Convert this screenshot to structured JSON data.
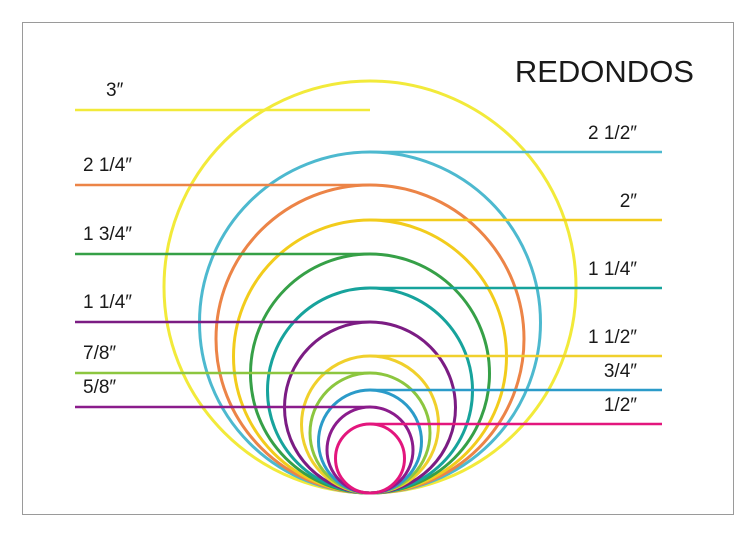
{
  "title": "REDONDOS",
  "circles": [
    {
      "label": "3″",
      "side": "left",
      "color": "#f2ea3a"
    },
    {
      "label": "2 1/2″",
      "side": "right",
      "color": "#4db9cf"
    },
    {
      "label": "2 1/4″",
      "side": "left",
      "color": "#ec8447"
    },
    {
      "label": "2″",
      "side": "right",
      "color": "#f2cc1c"
    },
    {
      "label": "1 3/4″",
      "side": "left",
      "color": "#36a047"
    },
    {
      "label": "1 1/4″",
      "side": "right",
      "color": "#17a39c"
    },
    {
      "label": "1 1/4″",
      "side": "left",
      "color": "#7b1c83"
    },
    {
      "label": "1 1/2″",
      "side": "right",
      "color": "#f0d02c"
    },
    {
      "label": "7/8″",
      "side": "left",
      "color": "#8cc63f"
    },
    {
      "label": "3/4″",
      "side": "right",
      "color": "#2b9bc9"
    },
    {
      "label": "5/8″",
      "side": "left",
      "color": "#8b1c8c"
    },
    {
      "label": "1/2″",
      "side": "right",
      "color": "#e3167d"
    }
  ]
}
